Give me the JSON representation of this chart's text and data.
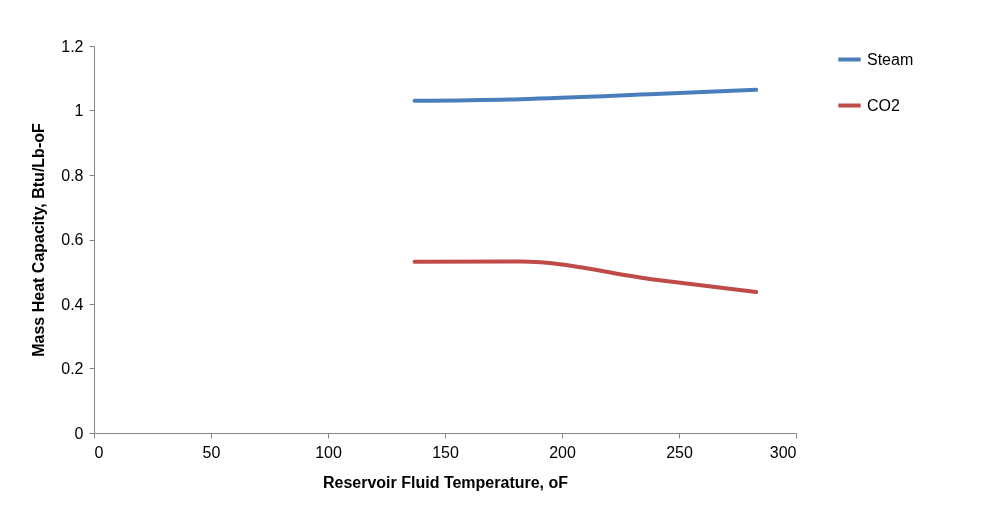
{
  "chart_data": {
    "type": "line",
    "xlabel": "Reservoir Fluid Temperature, oF",
    "ylabel": "Mass Heat Capacity, Btu/Lb-oF",
    "xlim": [
      0,
      300
    ],
    "xticks": [
      0,
      50,
      100,
      150,
      200,
      250,
      300
    ],
    "ylim": [
      0,
      1.2
    ],
    "yticks": [
      0,
      0.2,
      0.4,
      0.6,
      0.8,
      1,
      1.2
    ],
    "grid": false,
    "legend": "right",
    "marker": "none",
    "line_style": "solid",
    "series": [
      {
        "name": "Steam",
        "color": "#4a7ebb",
        "x": [
          137,
          182,
          240,
          283
        ],
        "values": [
          1.03,
          1.035,
          1.051,
          1.064
        ]
      },
      {
        "name": "CO2",
        "color": "#be4b48",
        "x": [
          137,
          182,
          240,
          283
        ],
        "values": [
          0.531,
          0.532,
          0.475,
          0.437
        ]
      }
    ]
  }
}
